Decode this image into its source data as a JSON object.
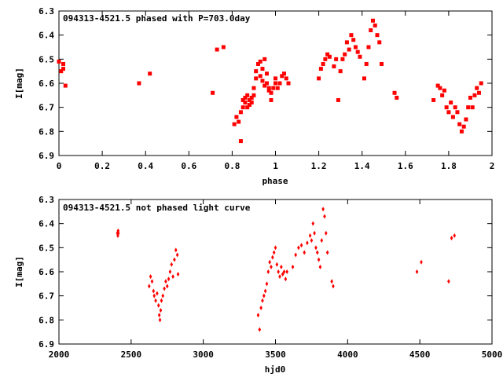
{
  "chart_data": [
    {
      "type": "scatter",
      "title": "094313-4521.5 phased with P=703.0day",
      "xlabel": "phase",
      "ylabel": "I[mag]",
      "xlim": [
        0,
        2
      ],
      "ylim": [
        6.9,
        6.3
      ],
      "y_inverted": true,
      "xticks": [
        "0",
        "0.2",
        "0.4",
        "0.6",
        "0.8",
        "1",
        "1.2",
        "1.4",
        "1.6",
        "1.8",
        "2"
      ],
      "yticks": [
        "6.3",
        "6.4",
        "6.5",
        "6.6",
        "6.7",
        "6.8",
        "6.9"
      ],
      "marker_color": "#ff0000",
      "series": [
        {
          "x": [
            0.0,
            0.01,
            0.02,
            0.02,
            0.03,
            0.37,
            0.42,
            0.71,
            0.73,
            0.76,
            0.81,
            0.82,
            0.83,
            0.84,
            0.84,
            0.85,
            0.85,
            0.86,
            0.86,
            0.87,
            0.87,
            0.88,
            0.88,
            0.89,
            0.89,
            0.9,
            0.9,
            0.91,
            0.91,
            0.92,
            0.93,
            0.93,
            0.94,
            0.94,
            0.95,
            0.95,
            0.96,
            0.96,
            0.97,
            0.97,
            0.98,
            0.98,
            0.99,
            1.0,
            1.0,
            1.01,
            1.02,
            1.03,
            1.04,
            1.05,
            1.06,
            1.2,
            1.21,
            1.22,
            1.23,
            1.24,
            1.25,
            1.27,
            1.28,
            1.29,
            1.3,
            1.31,
            1.32,
            1.33,
            1.34,
            1.35,
            1.36,
            1.37,
            1.38,
            1.39,
            1.41,
            1.42,
            1.43,
            1.44,
            1.45,
            1.46,
            1.47,
            1.48,
            1.49,
            1.55,
            1.56,
            1.73,
            1.75,
            1.76,
            1.77,
            1.78,
            1.79,
            1.8,
            1.81,
            1.82,
            1.83,
            1.84,
            1.85,
            1.86,
            1.87,
            1.88,
            1.89,
            1.9,
            1.91,
            1.92,
            1.93,
            1.94,
            1.95
          ],
          "y": [
            6.51,
            6.55,
            6.52,
            6.54,
            6.61,
            6.6,
            6.56,
            6.64,
            6.46,
            6.45,
            6.77,
            6.74,
            6.76,
            6.84,
            6.72,
            6.7,
            6.67,
            6.68,
            6.66,
            6.7,
            6.65,
            6.67,
            6.69,
            6.66,
            6.68,
            6.65,
            6.62,
            6.58,
            6.55,
            6.52,
            6.51,
            6.57,
            6.54,
            6.59,
            6.5,
            6.61,
            6.56,
            6.6,
            6.62,
            6.63,
            6.64,
            6.67,
            6.62,
            6.58,
            6.6,
            6.62,
            6.6,
            6.57,
            6.56,
            6.58,
            6.6,
            6.58,
            6.54,
            6.52,
            6.5,
            6.48,
            6.49,
            6.53,
            6.5,
            6.67,
            6.55,
            6.5,
            6.48,
            6.43,
            6.46,
            6.4,
            6.42,
            6.45,
            6.47,
            6.49,
            6.58,
            6.52,
            6.45,
            6.38,
            6.34,
            6.36,
            6.4,
            6.43,
            6.52,
            6.64,
            6.66,
            6.67,
            6.61,
            6.62,
            6.65,
            6.63,
            6.7,
            6.72,
            6.68,
            6.74,
            6.7,
            6.72,
            6.77,
            6.8,
            6.78,
            6.75,
            6.7,
            6.66,
            6.7,
            6.65,
            6.62,
            6.64,
            6.6
          ]
        }
      ]
    },
    {
      "type": "scatter",
      "title": "094313-4521.5 not phased light curve",
      "xlabel": "hjd0",
      "ylabel": "I[mag]",
      "xlim": [
        2000,
        5000
      ],
      "ylim": [
        6.9,
        6.3
      ],
      "y_inverted": true,
      "xticks": [
        "2000",
        "2500",
        "3000",
        "3500",
        "4000",
        "4500",
        "5000"
      ],
      "yticks": [
        "6.3",
        "6.4",
        "6.5",
        "6.6",
        "6.7",
        "6.8",
        "6.9"
      ],
      "marker_color": "#ff0000",
      "series": [
        {
          "x": [
            2405,
            2408,
            2410,
            2412,
            2625,
            2635,
            2645,
            2655,
            2660,
            2670,
            2680,
            2690,
            2695,
            2700,
            2705,
            2710,
            2720,
            2730,
            2740,
            2750,
            2760,
            2770,
            2780,
            2790,
            2800,
            2810,
            2820,
            2825,
            3380,
            3390,
            3400,
            3410,
            3420,
            3430,
            3440,
            3450,
            3460,
            3470,
            3480,
            3490,
            3500,
            3510,
            3520,
            3530,
            3540,
            3550,
            3560,
            3570,
            3580,
            3620,
            3640,
            3660,
            3680,
            3700,
            3720,
            3740,
            3750,
            3760,
            3770,
            3780,
            3790,
            3800,
            3810,
            3820,
            3830,
            3840,
            3850,
            3860,
            3890,
            3900,
            4480,
            4510,
            4700,
            4720,
            4740
          ],
          "y": [
            6.44,
            6.45,
            6.43,
            6.44,
            6.66,
            6.62,
            6.64,
            6.68,
            6.7,
            6.72,
            6.69,
            6.74,
            6.78,
            6.8,
            6.76,
            6.72,
            6.7,
            6.67,
            6.64,
            6.66,
            6.63,
            6.6,
            6.57,
            6.62,
            6.55,
            6.51,
            6.53,
            6.61,
            6.78,
            6.84,
            6.75,
            6.72,
            6.7,
            6.68,
            6.65,
            6.6,
            6.56,
            6.58,
            6.54,
            6.52,
            6.5,
            6.57,
            6.6,
            6.62,
            6.58,
            6.61,
            6.6,
            6.63,
            6.6,
            6.58,
            6.53,
            6.5,
            6.49,
            6.52,
            6.48,
            6.45,
            6.47,
            6.4,
            6.44,
            6.5,
            6.52,
            6.55,
            6.58,
            6.47,
            6.34,
            6.37,
            6.44,
            6.52,
            6.64,
            6.66,
            6.6,
            6.56,
            6.64,
            6.46,
            6.45
          ]
        }
      ]
    }
  ]
}
